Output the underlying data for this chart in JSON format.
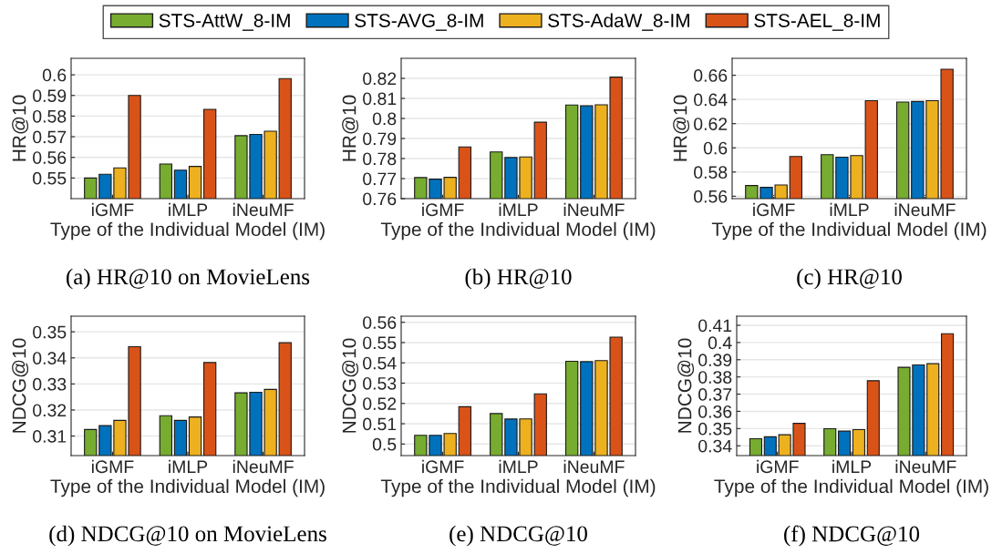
{
  "chart_data": [
    {
      "type": "bar",
      "categories": [
        "iGMF",
        "iMLP",
        "iNeuMF"
      ],
      "xlabel": "Type of the Individual Model (IM)",
      "ylabel": "HR@10",
      "ylim": [
        0.54,
        0.608
      ],
      "yticks": [
        0.55,
        0.56,
        0.57,
        0.58,
        0.59,
        0.6
      ],
      "grid": "y",
      "legend": "top",
      "annotations": [
        "(a) HR@10 on MovieLens"
      ],
      "series": [
        {
          "name": "STS-AttW_8-IM",
          "color": "#77ac30",
          "values": [
            0.55,
            0.5568,
            0.5705
          ]
        },
        {
          "name": "STS-AVG_8-IM",
          "color": "#0072bd",
          "values": [
            0.5518,
            0.5538,
            0.5711
          ]
        },
        {
          "name": "STS-AdaW_8-IM",
          "color": "#edb120",
          "values": [
            0.5549,
            0.5556,
            0.5727
          ]
        },
        {
          "name": "STS-AEL_8-IM",
          "color": "#d95319",
          "values": [
            0.59,
            0.5833,
            0.5982
          ]
        }
      ]
    },
    {
      "type": "bar",
      "categories": [
        "iGMF",
        "iMLP",
        "iNeuMF"
      ],
      "xlabel": "Type of the Individual Model (IM)",
      "ylabel": "HR@10",
      "ylim": [
        0.76,
        0.83
      ],
      "yticks": [
        0.76,
        0.77,
        0.78,
        0.79,
        0.8,
        0.81,
        0.82
      ],
      "grid": "y",
      "annotations": [
        "(b) HR@10"
      ],
      "series": [
        {
          "color": "#77ac30",
          "values": [
            0.7705,
            0.7833,
            0.8067
          ]
        },
        {
          "color": "#0072bd",
          "values": [
            0.7697,
            0.7805,
            0.8063
          ]
        },
        {
          "color": "#edb120",
          "values": [
            0.7706,
            0.7808,
            0.8068
          ]
        },
        {
          "color": "#d95319",
          "values": [
            0.7858,
            0.7981,
            0.8206
          ]
        }
      ]
    },
    {
      "type": "bar",
      "categories": [
        "iGMF",
        "iMLP",
        "iNeuMF"
      ],
      "xlabel": "Type of the Individual Model (IM)",
      "ylabel": "HR@10",
      "ylim": [
        0.558,
        0.674
      ],
      "yticks": [
        0.56,
        0.58,
        0.6,
        0.62,
        0.64,
        0.66
      ],
      "grid": "y",
      "annotations": [
        "(c) HR@10"
      ],
      "series": [
        {
          "color": "#77ac30",
          "values": [
            0.5688,
            0.5943,
            0.6378
          ]
        },
        {
          "color": "#0072bd",
          "values": [
            0.5673,
            0.5923,
            0.6383
          ]
        },
        {
          "color": "#edb120",
          "values": [
            0.5693,
            0.5936,
            0.639
          ]
        },
        {
          "color": "#d95319",
          "values": [
            0.5928,
            0.639,
            0.665
          ]
        }
      ]
    },
    {
      "type": "bar",
      "categories": [
        "iGMF",
        "iMLP",
        "iNeuMF"
      ],
      "xlabel": "Type of the Individual Model (IM)",
      "ylabel": "NDCG@10",
      "ylim": [
        0.3025,
        0.356
      ],
      "yticks": [
        0.31,
        0.32,
        0.33,
        0.34,
        0.35
      ],
      "grid": "y",
      "annotations": [
        "(d) NDCG@10 on MovieLens"
      ],
      "series": [
        {
          "color": "#77ac30",
          "values": [
            0.3125,
            0.3178,
            0.3266
          ]
        },
        {
          "color": "#0072bd",
          "values": [
            0.314,
            0.316,
            0.3268
          ]
        },
        {
          "color": "#edb120",
          "values": [
            0.316,
            0.3173,
            0.3279
          ]
        },
        {
          "color": "#d95319",
          "values": [
            0.3443,
            0.3382,
            0.3458
          ]
        }
      ]
    },
    {
      "type": "bar",
      "categories": [
        "iGMF",
        "iMLP",
        "iNeuMF"
      ],
      "xlabel": "Type of the Individual Model (IM)",
      "ylabel": "NDCG@10",
      "ylim": [
        0.4943,
        0.563
      ],
      "yticks": [
        0.5,
        0.51,
        0.52,
        0.53,
        0.54,
        0.55,
        0.56
      ],
      "grid": "y",
      "annotations": [
        "(e) NDCG@10"
      ],
      "series": [
        {
          "color": "#77ac30",
          "values": [
            0.5043,
            0.515,
            0.5408
          ]
        },
        {
          "color": "#0072bd",
          "values": [
            0.5043,
            0.5123,
            0.5406
          ]
        },
        {
          "color": "#edb120",
          "values": [
            0.5052,
            0.5124,
            0.5411
          ]
        },
        {
          "color": "#d95319",
          "values": [
            0.5184,
            0.5247,
            0.5527
          ]
        }
      ]
    },
    {
      "type": "bar",
      "categories": [
        "iGMF",
        "iMLP",
        "iNeuMF"
      ],
      "xlabel": "Type of the Individual Model (IM)",
      "ylabel": "NDCG@10",
      "ylim": [
        0.3343,
        0.4153
      ],
      "yticks": [
        0.34,
        0.35,
        0.36,
        0.37,
        0.38,
        0.39,
        0.4,
        0.41
      ],
      "grid": "y",
      "annotations": [
        "(f) NDCG@10"
      ],
      "series": [
        {
          "color": "#77ac30",
          "values": [
            0.3441,
            0.3499,
            0.3856
          ]
        },
        {
          "color": "#0072bd",
          "values": [
            0.3452,
            0.3485,
            0.387
          ]
        },
        {
          "color": "#edb120",
          "values": [
            0.3464,
            0.3494,
            0.3877
          ]
        },
        {
          "color": "#d95319",
          "values": [
            0.353,
            0.3778,
            0.4051
          ]
        }
      ]
    }
  ]
}
